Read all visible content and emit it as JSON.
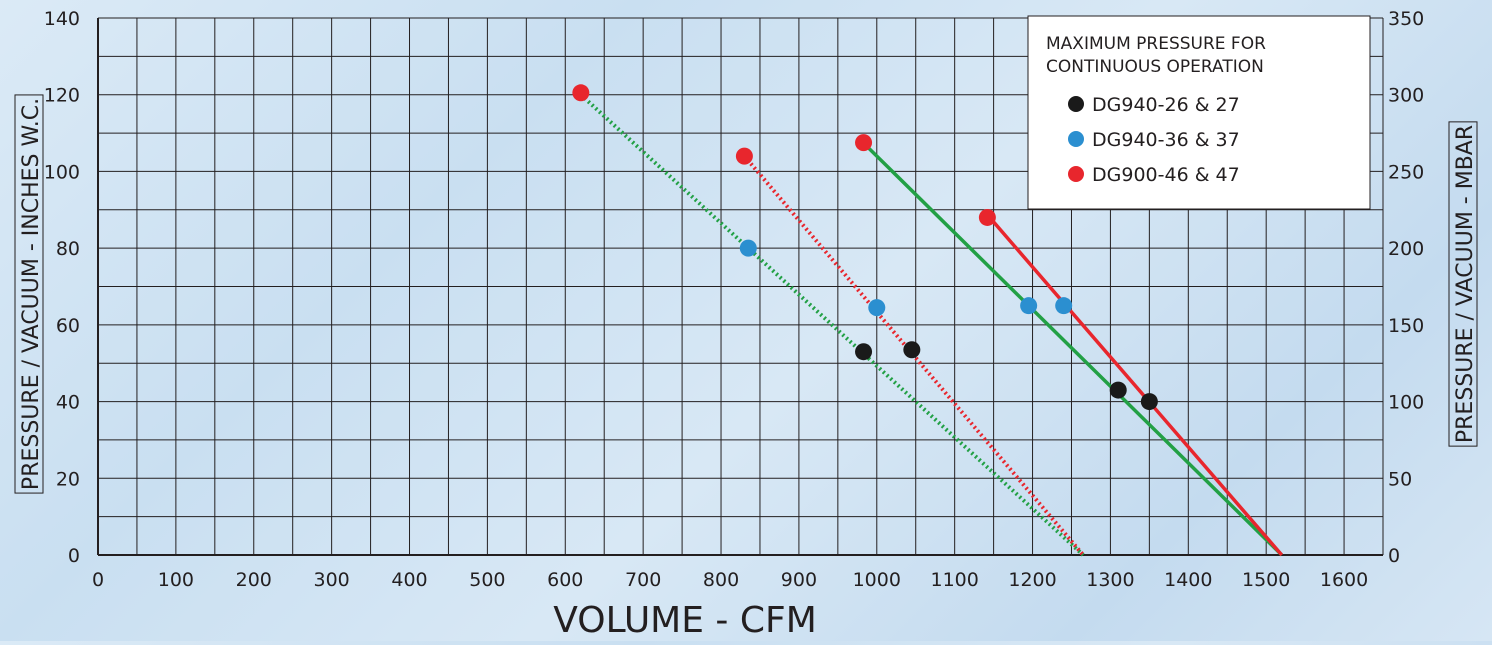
{
  "chart_data": {
    "type": "line",
    "xlabel": "VOLUME - CFM",
    "ylabel": "PRESSURE / VACUUM - INCHES W.C.",
    "y2label": "PRESSURE / VACUUM - MBAR",
    "xlim": [
      0,
      1650
    ],
    "ylim": [
      0,
      140
    ],
    "y2lim": [
      0,
      350
    ],
    "x_ticks": [
      0,
      100,
      200,
      300,
      400,
      500,
      600,
      700,
      800,
      900,
      1000,
      1100,
      1200,
      1300,
      1400,
      1500,
      1600
    ],
    "y_ticks": [
      0,
      20,
      40,
      60,
      80,
      100,
      120,
      140
    ],
    "y2_ticks": [
      0,
      50,
      100,
      150,
      200,
      250,
      300,
      350
    ],
    "grid": true,
    "legend": {
      "position": "top-right",
      "title_lines": [
        "MAXIMUM PRESSURE FOR",
        "CONTINUOUS OPERATION"
      ],
      "entries": [
        {
          "label": "DG940-26 & 27",
          "color": "#1a1a1a"
        },
        {
          "label": "DG940-36 & 37",
          "color": "#2b8fd0"
        },
        {
          "label": "DG900-46 & 47",
          "color": "#e8262d"
        }
      ]
    },
    "lines": [
      {
        "color": "#22a045",
        "style": "dotted",
        "points": [
          [
            620,
            120
          ],
          [
            1265,
            0
          ]
        ]
      },
      {
        "color": "#e8262d",
        "style": "dotted",
        "points": [
          [
            830,
            104
          ],
          [
            1265,
            0
          ]
        ]
      },
      {
        "color": "#22a045",
        "style": "solid",
        "points": [
          [
            985,
            107
          ],
          [
            1520,
            0
          ]
        ]
      },
      {
        "color": "#e8262d",
        "style": "solid",
        "points": [
          [
            1145,
            88
          ],
          [
            1520,
            0
          ]
        ]
      }
    ],
    "points": [
      {
        "series": "DG900-46 & 47",
        "color": "#e8262d",
        "x": 620,
        "y": 120.5
      },
      {
        "series": "DG900-46 & 47",
        "color": "#e8262d",
        "x": 830,
        "y": 104
      },
      {
        "series": "DG900-46 & 47",
        "color": "#e8262d",
        "x": 983,
        "y": 107.5
      },
      {
        "series": "DG900-46 & 47",
        "color": "#e8262d",
        "x": 1142,
        "y": 88
      },
      {
        "series": "DG940-36 & 37",
        "color": "#2b8fd0",
        "x": 835,
        "y": 80
      },
      {
        "series": "DG940-36 & 37",
        "color": "#2b8fd0",
        "x": 1000,
        "y": 64.5
      },
      {
        "series": "DG940-36 & 37",
        "color": "#2b8fd0",
        "x": 1195,
        "y": 65
      },
      {
        "series": "DG940-36 & 37",
        "color": "#2b8fd0",
        "x": 1240,
        "y": 65
      },
      {
        "series": "DG940-26 & 27",
        "color": "#1a1a1a",
        "x": 983,
        "y": 53
      },
      {
        "series": "DG940-26 & 27",
        "color": "#1a1a1a",
        "x": 1045,
        "y": 53.5
      },
      {
        "series": "DG940-26 & 27",
        "color": "#1a1a1a",
        "x": 1310,
        "y": 43
      },
      {
        "series": "DG940-26 & 27",
        "color": "#1a1a1a",
        "x": 1350,
        "y": 40
      }
    ]
  }
}
